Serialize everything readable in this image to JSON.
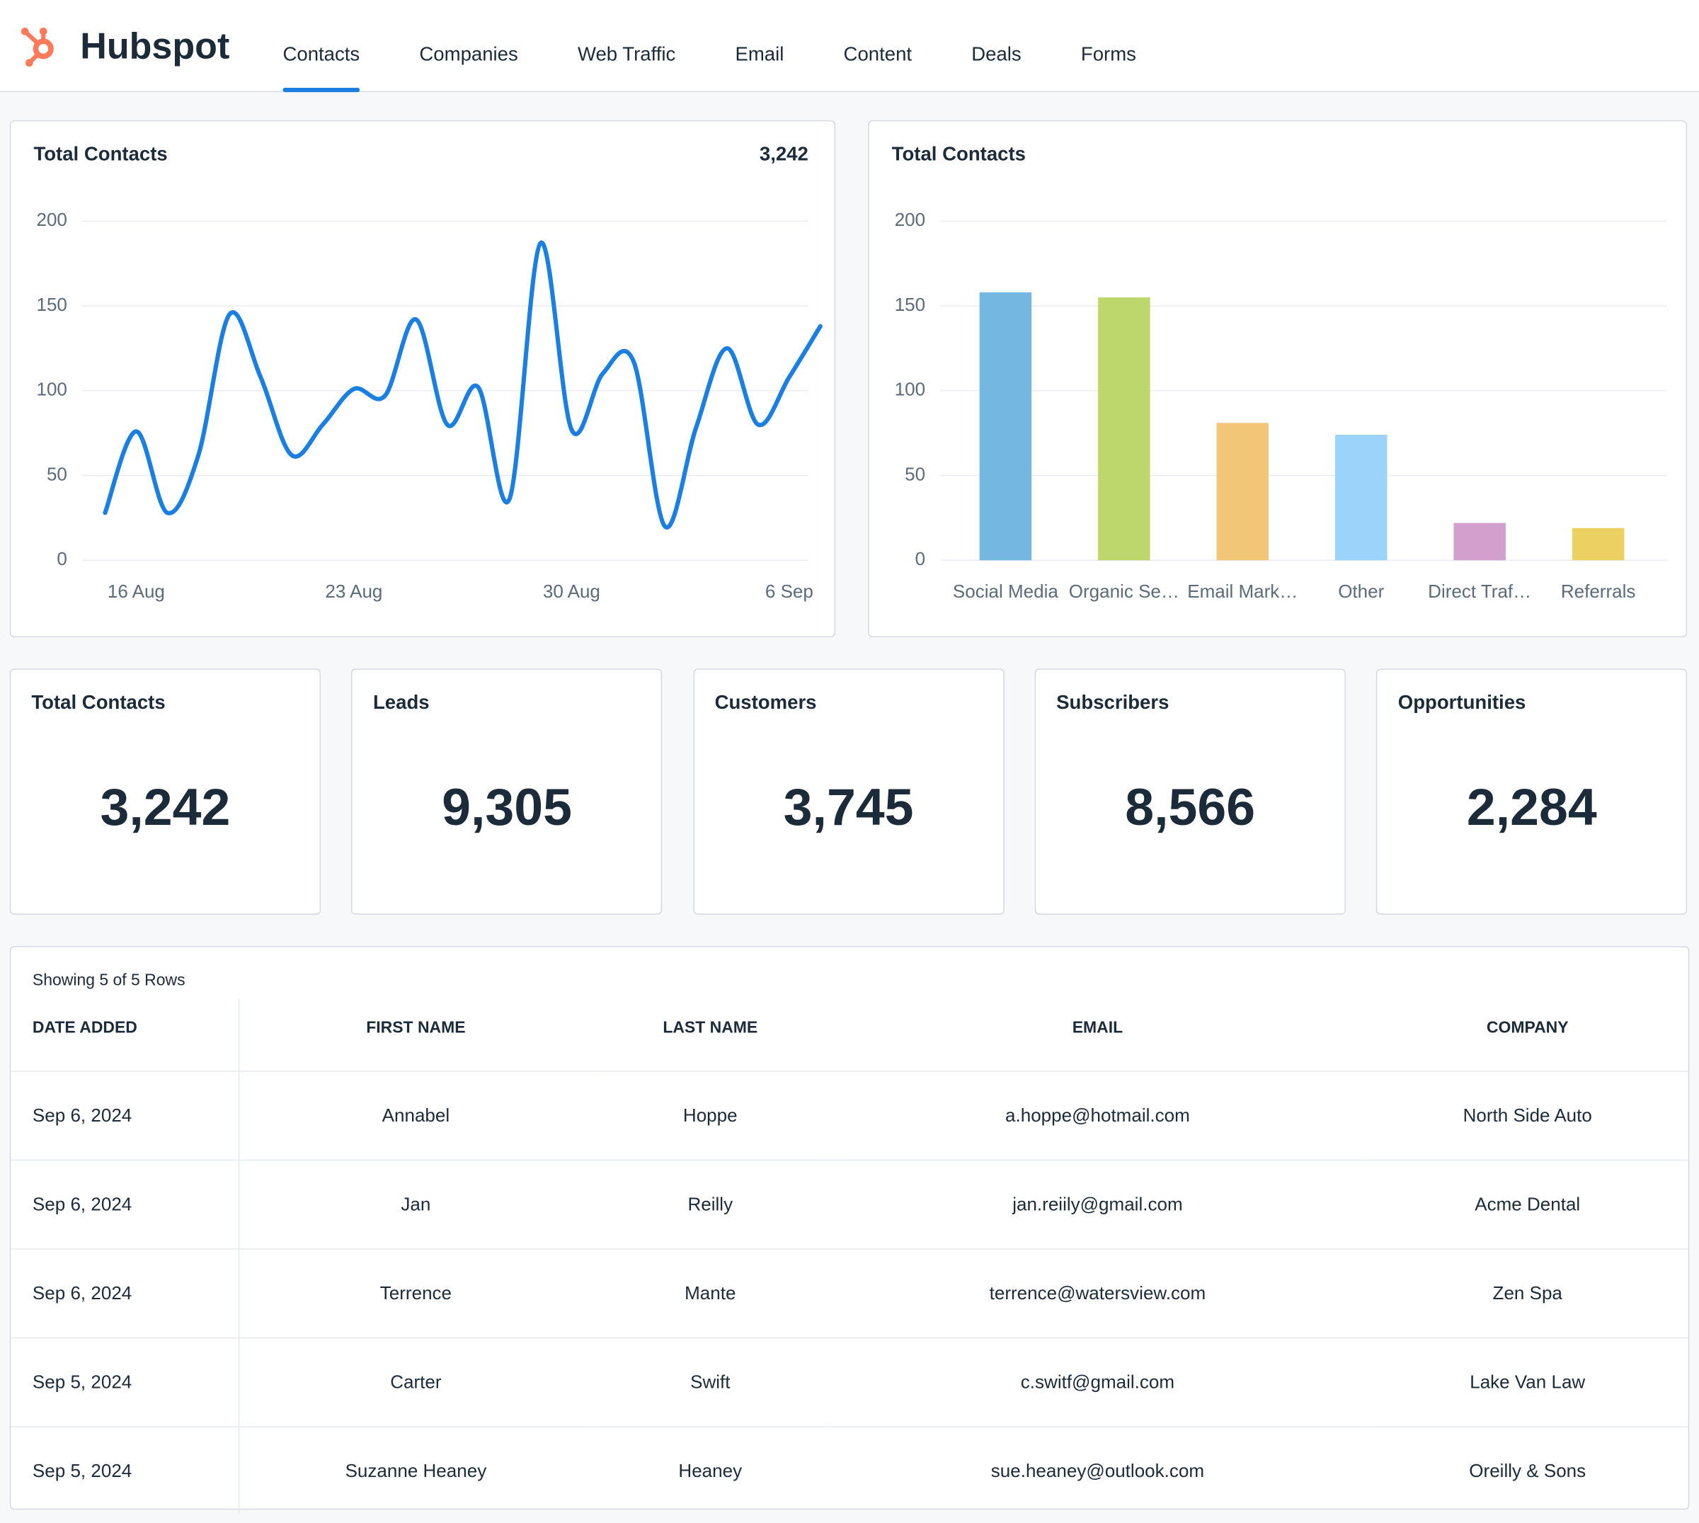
{
  "header": {
    "brand": "Hubspot",
    "tabs": [
      "Contacts",
      "Companies",
      "Web Traffic",
      "Email",
      "Content",
      "Deals",
      "Forms"
    ],
    "active_tab": 0
  },
  "chart_data": [
    {
      "type": "line",
      "title": "Total Contacts",
      "summary": "3,242",
      "categories": [
        null,
        "16 Aug",
        null,
        null,
        null,
        null,
        null,
        null,
        "23 Aug",
        null,
        null,
        null,
        null,
        null,
        null,
        "30 Aug",
        null,
        null,
        null,
        null,
        null,
        null,
        "6 Sep",
        null
      ],
      "series": [
        {
          "name": "Total Contacts",
          "color": "#1a7fe0",
          "values": [
            28,
            76,
            28,
            62,
            145,
            108,
            62,
            80,
            101,
            97,
            142,
            80,
            102,
            36,
            187,
            77,
            110,
            117,
            20,
            78,
            125,
            80,
            108,
            138
          ]
        }
      ],
      "ylim": [
        0,
        200
      ],
      "yticks": [
        0,
        50,
        100,
        150,
        200
      ],
      "grid": true
    },
    {
      "type": "bar",
      "title": "Total Contacts",
      "categories": [
        "Social Media",
        "Organic Se…",
        "Email Mark…",
        "Other",
        "Direct Traf…",
        "Referrals"
      ],
      "values": [
        158,
        155,
        81,
        74,
        22,
        19
      ],
      "colors": [
        "#74b8e2",
        "#bed76c",
        "#f1c677",
        "#9bd3fa",
        "#d39fcd",
        "#ecd061"
      ],
      "ylim": [
        0,
        200
      ],
      "yticks": [
        0,
        50,
        100,
        150,
        200
      ],
      "grid": true
    }
  ],
  "kpis": [
    {
      "label": "Total Contacts",
      "value": "3,242"
    },
    {
      "label": "Leads",
      "value": "9,305"
    },
    {
      "label": "Customers",
      "value": "3,745"
    },
    {
      "label": "Subscribers",
      "value": "8,566"
    },
    {
      "label": "Opportunities",
      "value": "2,284"
    }
  ],
  "table": {
    "caption": "Showing 5 of 5 Rows",
    "headers": [
      "DATE ADDED",
      "FIRST NAME",
      "LAST NAME",
      "EMAIL",
      "COMPANY"
    ],
    "rows": [
      [
        "Sep 6, 2024",
        "Annabel",
        "Hoppe",
        "a.hoppe@hotmail.com",
        "North Side Auto"
      ],
      [
        "Sep 6, 2024",
        "Jan",
        "Reilly",
        "jan.reiily@gmail.com",
        "Acme Dental"
      ],
      [
        "Sep 6, 2024",
        "Terrence",
        "Mante",
        "terrence@watersview.com",
        "Zen Spa"
      ],
      [
        "Sep 5, 2024",
        "Carter",
        "Swift",
        "c.switf@gmail.com",
        "Lake Van Law"
      ],
      [
        "Sep 5, 2024",
        "Suzanne Heaney",
        "Heaney",
        "sue.heaney@outlook.com",
        "Oreilly & Sons"
      ]
    ]
  }
}
